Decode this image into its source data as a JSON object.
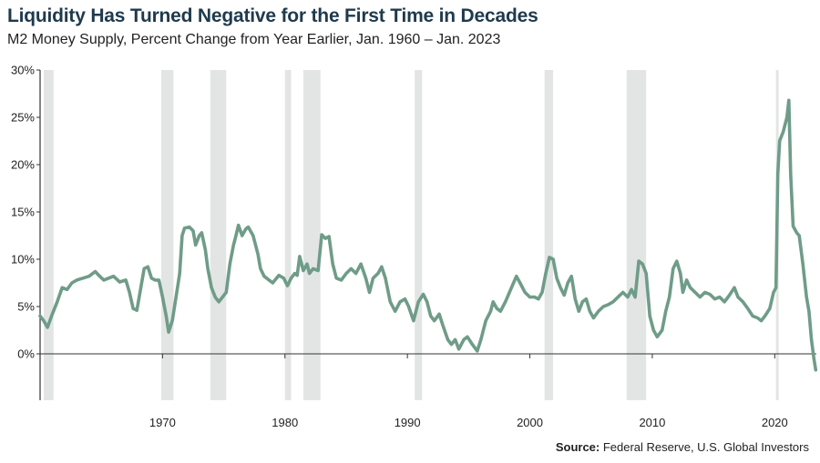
{
  "header": {
    "title": "Liquidity Has Turned Negative for the First Time in Decades",
    "subtitle": "M2 Money Supply, Percent Change from Year Earlier, Jan. 1960 – Jan. 2023"
  },
  "footer": {
    "source_label": "Source:",
    "source_text": " Federal Reserve, U.S. Global Investors"
  },
  "colors": {
    "line": "#6f9c88",
    "recession": "#e3e5e4",
    "axis": "#333333"
  },
  "chart_data": {
    "type": "line",
    "title": "Liquidity Has Turned Negative for the First Time in Decades",
    "subtitle": "M2 Money Supply, Percent Change from Year Earlier, Jan. 1960 – Jan. 2023",
    "xlabel": "",
    "ylabel": "",
    "xlim": [
      1960,
      2023.4
    ],
    "ylim": [
      -2,
      30
    ],
    "yticks": [
      0,
      5,
      10,
      15,
      20,
      25,
      30
    ],
    "ytick_labels": [
      "0%",
      "5%",
      "10%",
      "15%",
      "20%",
      "25%",
      "30%"
    ],
    "xticks": [
      1970,
      1980,
      1990,
      2000,
      2010,
      2020
    ],
    "xtick_labels": [
      "1970",
      "1980",
      "1990",
      "2000",
      "2010",
      "2020"
    ],
    "grid": false,
    "recessions": [
      [
        1960.3,
        1961.1
      ],
      [
        1969.9,
        1970.9
      ],
      [
        1973.9,
        1975.2
      ],
      [
        1980.0,
        1980.5
      ],
      [
        1981.5,
        1982.9
      ],
      [
        1990.6,
        1991.2
      ],
      [
        2001.2,
        2001.9
      ],
      [
        2007.9,
        2009.5
      ],
      [
        2020.1,
        2020.3
      ]
    ],
    "series": [
      {
        "values": [
          [
            1960.0,
            4.0
          ],
          [
            1960.3,
            3.5
          ],
          [
            1960.6,
            2.8
          ],
          [
            1961.0,
            4.2
          ],
          [
            1961.4,
            5.5
          ],
          [
            1961.8,
            7.0
          ],
          [
            1962.2,
            6.8
          ],
          [
            1962.6,
            7.5
          ],
          [
            1963.0,
            7.8
          ],
          [
            1963.5,
            8.0
          ],
          [
            1964.0,
            8.2
          ],
          [
            1964.5,
            8.7
          ],
          [
            1964.8,
            8.3
          ],
          [
            1965.2,
            7.8
          ],
          [
            1965.6,
            8.0
          ],
          [
            1966.0,
            8.2
          ],
          [
            1966.5,
            7.6
          ],
          [
            1967.0,
            7.8
          ],
          [
            1967.3,
            6.5
          ],
          [
            1967.6,
            4.8
          ],
          [
            1967.9,
            4.6
          ],
          [
            1968.2,
            6.8
          ],
          [
            1968.5,
            9.0
          ],
          [
            1968.8,
            9.2
          ],
          [
            1969.1,
            8.0
          ],
          [
            1969.4,
            7.8
          ],
          [
            1969.7,
            7.8
          ],
          [
            1970.0,
            6.0
          ],
          [
            1970.3,
            4.0
          ],
          [
            1970.5,
            2.3
          ],
          [
            1970.8,
            3.5
          ],
          [
            1971.1,
            6.0
          ],
          [
            1971.4,
            8.5
          ],
          [
            1971.6,
            12.5
          ],
          [
            1971.8,
            13.3
          ],
          [
            1972.2,
            13.4
          ],
          [
            1972.5,
            13.0
          ],
          [
            1972.7,
            11.5
          ],
          [
            1973.0,
            12.5
          ],
          [
            1973.2,
            12.8
          ],
          [
            1973.5,
            11.0
          ],
          [
            1973.7,
            9.0
          ],
          [
            1974.0,
            7.0
          ],
          [
            1974.3,
            6.0
          ],
          [
            1974.6,
            5.5
          ],
          [
            1974.9,
            6.0
          ],
          [
            1975.2,
            6.5
          ],
          [
            1975.5,
            9.5
          ],
          [
            1975.8,
            11.5
          ],
          [
            1976.0,
            12.5
          ],
          [
            1976.2,
            13.6
          ],
          [
            1976.5,
            12.5
          ],
          [
            1976.8,
            13.2
          ],
          [
            1977.0,
            13.4
          ],
          [
            1977.4,
            12.5
          ],
          [
            1977.8,
            10.5
          ],
          [
            1978.0,
            9.0
          ],
          [
            1978.3,
            8.2
          ],
          [
            1978.7,
            7.8
          ],
          [
            1979.0,
            7.5
          ],
          [
            1979.5,
            8.3
          ],
          [
            1979.9,
            8.0
          ],
          [
            1980.2,
            7.2
          ],
          [
            1980.5,
            8.0
          ],
          [
            1980.8,
            8.5
          ],
          [
            1981.0,
            8.3
          ],
          [
            1981.2,
            10.3
          ],
          [
            1981.5,
            8.8
          ],
          [
            1981.8,
            9.5
          ],
          [
            1982.0,
            8.5
          ],
          [
            1982.3,
            9.0
          ],
          [
            1982.7,
            8.8
          ],
          [
            1983.0,
            12.6
          ],
          [
            1983.3,
            12.2
          ],
          [
            1983.6,
            12.4
          ],
          [
            1983.9,
            9.5
          ],
          [
            1984.2,
            8.0
          ],
          [
            1984.6,
            7.8
          ],
          [
            1985.0,
            8.5
          ],
          [
            1985.4,
            9.0
          ],
          [
            1985.8,
            8.5
          ],
          [
            1986.2,
            9.5
          ],
          [
            1986.6,
            8.0
          ],
          [
            1986.9,
            6.5
          ],
          [
            1987.2,
            8.0
          ],
          [
            1987.6,
            8.5
          ],
          [
            1987.9,
            9.2
          ],
          [
            1988.2,
            8.0
          ],
          [
            1988.6,
            5.5
          ],
          [
            1989.0,
            4.5
          ],
          [
            1989.4,
            5.5
          ],
          [
            1989.8,
            5.8
          ],
          [
            1990.1,
            5.0
          ],
          [
            1990.5,
            3.5
          ],
          [
            1990.9,
            5.5
          ],
          [
            1991.3,
            6.3
          ],
          [
            1991.6,
            5.5
          ],
          [
            1991.9,
            4.0
          ],
          [
            1992.2,
            3.5
          ],
          [
            1992.6,
            4.2
          ],
          [
            1992.9,
            3.0
          ],
          [
            1993.3,
            1.5
          ],
          [
            1993.6,
            1.0
          ],
          [
            1993.9,
            1.5
          ],
          [
            1994.2,
            0.5
          ],
          [
            1994.6,
            1.5
          ],
          [
            1994.9,
            1.8
          ],
          [
            1995.3,
            1.0
          ],
          [
            1995.7,
            0.3
          ],
          [
            1996.0,
            1.5
          ],
          [
            1996.4,
            3.5
          ],
          [
            1996.8,
            4.5
          ],
          [
            1997.0,
            5.5
          ],
          [
            1997.3,
            4.8
          ],
          [
            1997.6,
            4.5
          ],
          [
            1998.0,
            5.5
          ],
          [
            1998.5,
            7.0
          ],
          [
            1998.9,
            8.2
          ],
          [
            1999.2,
            7.5
          ],
          [
            1999.6,
            6.5
          ],
          [
            2000.0,
            6.0
          ],
          [
            2000.4,
            6.0
          ],
          [
            2000.7,
            5.8
          ],
          [
            2001.0,
            6.5
          ],
          [
            2001.3,
            8.5
          ],
          [
            2001.6,
            10.2
          ],
          [
            2001.9,
            10.0
          ],
          [
            2002.2,
            8.0
          ],
          [
            2002.5,
            7.0
          ],
          [
            2002.8,
            6.2
          ],
          [
            2003.1,
            7.5
          ],
          [
            2003.4,
            8.2
          ],
          [
            2003.7,
            5.8
          ],
          [
            2004.0,
            4.5
          ],
          [
            2004.3,
            5.5
          ],
          [
            2004.6,
            5.8
          ],
          [
            2004.9,
            4.5
          ],
          [
            2005.2,
            3.8
          ],
          [
            2005.6,
            4.5
          ],
          [
            2006.0,
            5.0
          ],
          [
            2006.4,
            5.2
          ],
          [
            2006.8,
            5.5
          ],
          [
            2007.2,
            6.0
          ],
          [
            2007.6,
            6.5
          ],
          [
            2008.0,
            6.0
          ],
          [
            2008.3,
            6.8
          ],
          [
            2008.6,
            6.0
          ],
          [
            2008.9,
            9.8
          ],
          [
            2009.2,
            9.5
          ],
          [
            2009.5,
            8.5
          ],
          [
            2009.8,
            4.0
          ],
          [
            2010.1,
            2.5
          ],
          [
            2010.4,
            1.8
          ],
          [
            2010.8,
            2.5
          ],
          [
            2011.1,
            4.5
          ],
          [
            2011.4,
            6.0
          ],
          [
            2011.7,
            9.0
          ],
          [
            2012.0,
            9.8
          ],
          [
            2012.3,
            8.5
          ],
          [
            2012.5,
            6.5
          ],
          [
            2012.8,
            7.8
          ],
          [
            2013.1,
            7.0
          ],
          [
            2013.5,
            6.5
          ],
          [
            2013.9,
            6.0
          ],
          [
            2014.3,
            6.5
          ],
          [
            2014.7,
            6.3
          ],
          [
            2015.1,
            5.8
          ],
          [
            2015.5,
            6.0
          ],
          [
            2015.9,
            5.5
          ],
          [
            2016.3,
            6.2
          ],
          [
            2016.7,
            7.0
          ],
          [
            2017.0,
            6.0
          ],
          [
            2017.4,
            5.5
          ],
          [
            2017.8,
            4.8
          ],
          [
            2018.2,
            4.0
          ],
          [
            2018.6,
            3.8
          ],
          [
            2018.9,
            3.5
          ],
          [
            2019.2,
            4.0
          ],
          [
            2019.6,
            4.8
          ],
          [
            2019.9,
            6.5
          ],
          [
            2020.1,
            7.0
          ],
          [
            2020.25,
            19.0
          ],
          [
            2020.4,
            22.5
          ],
          [
            2020.7,
            23.5
          ],
          [
            2021.0,
            25.0
          ],
          [
            2021.15,
            26.8
          ],
          [
            2021.3,
            19.0
          ],
          [
            2021.5,
            13.5
          ],
          [
            2021.8,
            12.8
          ],
          [
            2022.0,
            12.5
          ],
          [
            2022.3,
            9.5
          ],
          [
            2022.6,
            6.0
          ],
          [
            2022.8,
            4.5
          ],
          [
            2023.0,
            1.5
          ],
          [
            2023.2,
            -0.5
          ],
          [
            2023.35,
            -1.7
          ]
        ]
      }
    ]
  }
}
